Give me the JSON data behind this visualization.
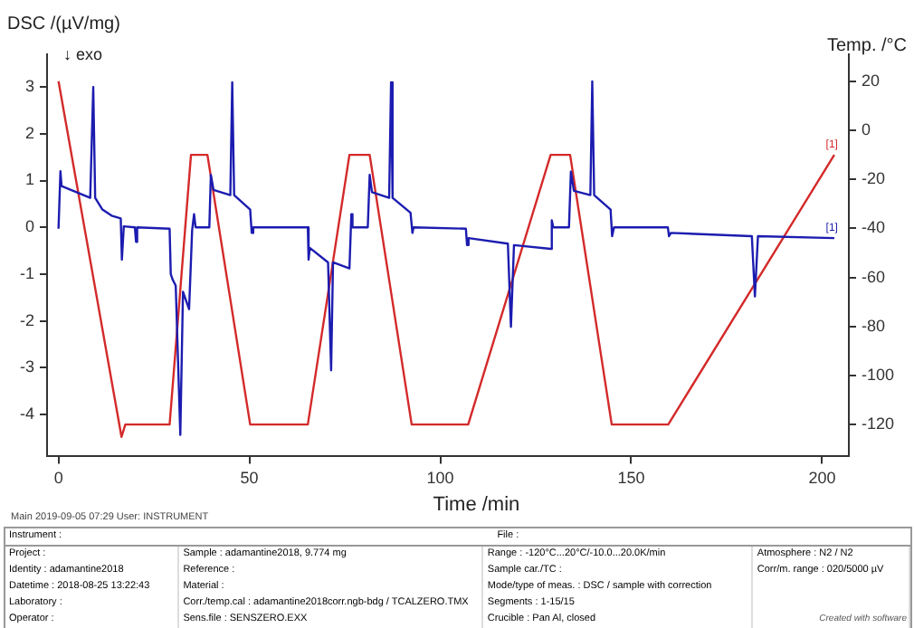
{
  "chart_data": {
    "type": "line",
    "ylabel": "DSC /(µV/mg)",
    "y2label": "Temp. /°C",
    "xlabel": "Time /min",
    "xlim": [
      -3,
      207
    ],
    "xticks": [
      0,
      50,
      100,
      150,
      200
    ],
    "ylim": [
      -4.9,
      3.7
    ],
    "yticks": [
      -4,
      -3,
      -2,
      -1,
      0,
      1,
      2,
      3
    ],
    "y2lim": [
      -133,
      31
    ],
    "y2ticks": [
      -120,
      -100,
      -80,
      -60,
      -40,
      -20,
      0,
      20
    ],
    "grid": false,
    "legend": false,
    "marker": "none",
    "line_style": "solid",
    "series": [
      {
        "name": "[1]",
        "color": "#1c1cb0",
        "x": [
          0,
          0.5,
          0.8,
          8.3,
          9.1,
          9.6,
          11.5,
          13.9,
          16.3,
          16.6,
          17.1,
          20.0,
          20.3,
          20.6,
          29.1,
          29.4,
          29.9,
          30.7,
          31.9,
          32.6,
          34.2,
          35.0,
          35.5,
          35.9,
          39.5,
          39.9,
          40.6,
          45.0,
          45.5,
          46.0,
          50.2,
          50.6,
          51.0,
          65.3,
          65.5,
          65.8,
          70.6,
          71.4,
          71.9,
          76.2,
          76.7,
          77.0,
          81.0,
          81.5,
          82.1,
          86.6,
          87.1,
          87.5,
          92.2,
          92.7,
          93.0,
          106.7,
          107.0,
          107.4,
          117.7,
          118.5,
          119.3,
          128.9,
          129.2,
          129.6,
          133.7,
          134.2,
          135.0,
          139.3,
          139.8,
          140.3,
          144.6,
          145.0,
          145.5,
          159.6,
          159.9,
          160.4,
          181.6,
          182.4,
          183.2,
          203.2
        ],
        "values": [
          -0.03,
          1.2,
          0.88,
          0.63,
          3.0,
          0.63,
          0.38,
          0.25,
          0.19,
          -0.69,
          0.02,
          0.0,
          -0.31,
          0.0,
          -0.03,
          -1.0,
          -1.12,
          -1.25,
          -4.44,
          -1.38,
          -1.75,
          -0.06,
          0.28,
          0.0,
          0.0,
          1.12,
          0.8,
          0.69,
          3.1,
          0.69,
          0.38,
          -0.12,
          0.0,
          0.0,
          -0.69,
          -0.44,
          -0.75,
          -3.06,
          -0.75,
          -0.88,
          0.28,
          0.0,
          0.0,
          1.12,
          0.75,
          0.63,
          3.1,
          0.63,
          0.31,
          -0.12,
          0.0,
          -0.03,
          -0.38,
          -0.23,
          -0.35,
          -2.13,
          -0.38,
          -0.46,
          0.15,
          0.0,
          0.0,
          1.19,
          0.78,
          0.69,
          3.12,
          0.69,
          0.38,
          -0.19,
          0.0,
          0.0,
          -0.19,
          -0.12,
          -0.19,
          -1.48,
          -0.19,
          -0.23
        ]
      },
      {
        "name": "[1]",
        "color": "#d42a2a",
        "axis": "y2",
        "x": [
          0,
          16.5,
          17.5,
          29.1,
          34.7,
          39.0,
          50.2,
          65.3,
          76.2,
          81.5,
          92.5,
          107.3,
          128.9,
          134.0,
          144.9,
          159.7,
          203.2
        ],
        "values": [
          20,
          -125,
          -120,
          -120,
          -10,
          -10,
          -120,
          -120,
          -10,
          -10,
          -120,
          -120,
          -10,
          -10,
          -120,
          -120,
          -10
        ]
      }
    ],
    "annotations": [
      "↓ exo",
      "Main  2019-09-05 07:29  User: INSTRUMENT",
      "Created with software",
      "Instrument :",
      "File :",
      "Project :",
      "Identity :   adamantine2018",
      "Datetime :   2018-08-25 13:22:43",
      "Laboratory :",
      "Operator :",
      "Sample :   adamantine2018, 9.774 mg",
      "Reference :",
      "Material :",
      "Corr./temp.cal :   adamantine2018corr.ngb-bdg / TCALZERO.TMX",
      "Sens.file :   SENSZERO.EXX",
      "Range :   -120°C...20°C/-10.0...20.0K/min",
      "Sample car./TC :",
      "Mode/type of meas. :   DSC / sample with correction",
      "Segments :   1-15/15",
      "Crucible :   Pan Al, closed",
      "Atmosphere :   N2 / N2",
      "Corr/m. range :   020/5000 µV"
    ]
  }
}
